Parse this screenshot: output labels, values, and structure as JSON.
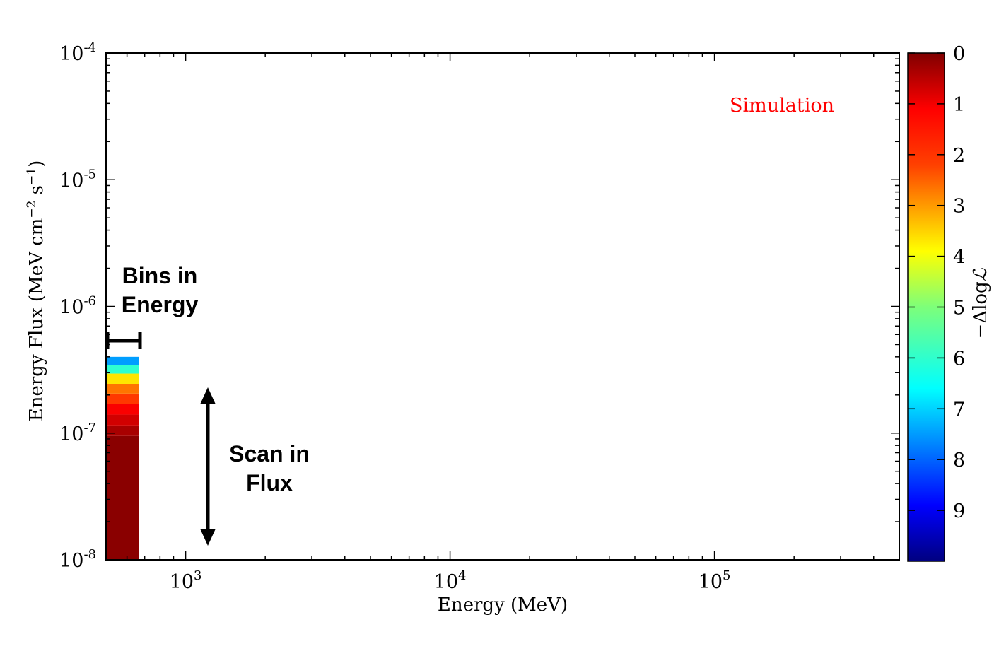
{
  "chart_data": {
    "type": "heatmap",
    "xlabel": "Energy (MeV)",
    "ylabel_main": "Energy Flux (MeV cm",
    "ylabel_sup1": "−2",
    "ylabel_mid": " s",
    "ylabel_sup2": "−1",
    "ylabel_end": ")",
    "x_scale": "log",
    "y_scale": "log",
    "xlim": [
      500,
      500000
    ],
    "ylim": [
      1e-08,
      0.0001
    ],
    "x_ticks": [
      {
        "value": 1000,
        "base": "10",
        "exp": "3"
      },
      {
        "value": 10000,
        "base": "10",
        "exp": "4"
      },
      {
        "value": 100000,
        "base": "10",
        "exp": "5"
      }
    ],
    "y_ticks": [
      {
        "value": 1e-08,
        "base": "10",
        "exp": "-8"
      },
      {
        "value": 1e-07,
        "base": "10",
        "exp": "-7"
      },
      {
        "value": 1e-06,
        "base": "10",
        "exp": "-6"
      },
      {
        "value": 1e-05,
        "base": "10",
        "exp": "-5"
      },
      {
        "value": 0.0001,
        "base": "10",
        "exp": "-4"
      }
    ],
    "colorbar": {
      "label": "−ΔlogℒL",
      "label_prefix": "−Δlog",
      "label_script": "ℒ",
      "range": [
        0,
        10
      ],
      "reversed": true,
      "ticks": [
        "0",
        "1",
        "2",
        "3",
        "4",
        "5",
        "6",
        "7",
        "8",
        "9"
      ]
    },
    "annotation": "Simulation",
    "annotation_color": "#ff0000",
    "bin": {
      "energy_range": [
        500,
        665
      ],
      "cells": [
        {
          "flux_lo": 1e-08,
          "flux_hi": 9.5e-08,
          "delta_loglike": 0.1
        },
        {
          "flux_lo": 9.5e-08,
          "flux_hi": 1.15e-07,
          "delta_loglike": 0.4
        },
        {
          "flux_lo": 1.15e-07,
          "flux_hi": 1.4e-07,
          "delta_loglike": 0.8
        },
        {
          "flux_lo": 1.4e-07,
          "flux_hi": 1.7e-07,
          "delta_loglike": 1.2
        },
        {
          "flux_lo": 1.7e-07,
          "flux_hi": 2.05e-07,
          "delta_loglike": 1.8
        },
        {
          "flux_lo": 2.05e-07,
          "flux_hi": 2.45e-07,
          "delta_loglike": 2.4
        },
        {
          "flux_lo": 2.45e-07,
          "flux_hi": 2.95e-07,
          "delta_loglike": 3.5
        },
        {
          "flux_lo": 2.95e-07,
          "flux_hi": 3.45e-07,
          "delta_loglike": 5.8
        },
        {
          "flux_lo": 3.45e-07,
          "flux_hi": 4e-07,
          "delta_loglike": 7.2
        }
      ]
    },
    "callouts": {
      "bins_line1": "Bins in",
      "bins_line2": "Energy",
      "scan_line1": "Scan in",
      "scan_line2": "Flux"
    }
  }
}
